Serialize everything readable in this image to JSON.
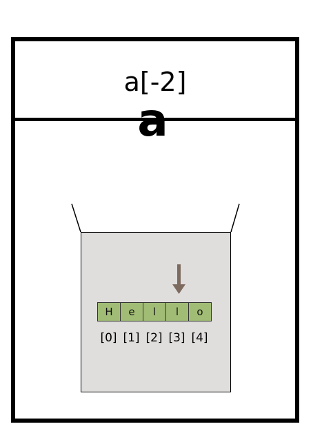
{
  "expression": "a[-2]",
  "variable": "a",
  "array": {
    "cells": [
      "H",
      "e",
      "l",
      "l",
      "o"
    ],
    "indices": [
      "[0]",
      "[1]",
      "[2]",
      "[3]",
      "[4]"
    ],
    "pointed_index": 3
  },
  "colors": {
    "border": "#000000",
    "box_fill": "#e0dedd",
    "cell_fill": "#a1bd75",
    "arrow": "#7d6a5f"
  }
}
